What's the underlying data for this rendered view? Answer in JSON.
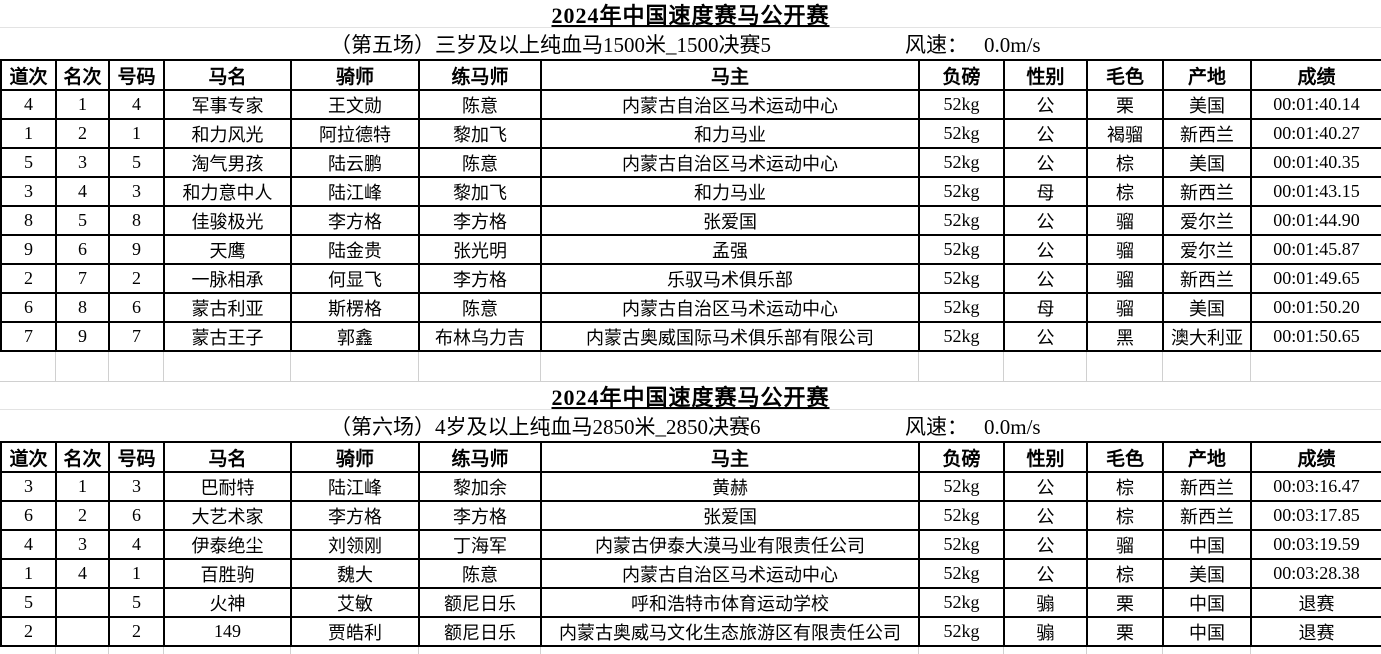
{
  "colors": {
    "background": "#ffffff",
    "text": "#000000",
    "table_border": "#000000",
    "faint_gridline": "#d0d0d0"
  },
  "sections": [
    {
      "title": "2024年中国速度赛马公开赛",
      "subtitle": "（第五场）三岁及以上纯血马1500米_1500决赛5",
      "wind_label": "风速：",
      "wind_value": "0.0m/s",
      "columns": [
        "道次",
        "名次",
        "号码",
        "马名",
        "骑师",
        "练马师",
        "马主",
        "负磅",
        "性别",
        "毛色",
        "产地",
        "成绩"
      ],
      "rows": [
        [
          "4",
          "1",
          "4",
          "军事专家",
          "王文勋",
          "陈意",
          "内蒙古自治区马术运动中心",
          "52kg",
          "公",
          "栗",
          "美国",
          "00:01:40.14"
        ],
        [
          "1",
          "2",
          "1",
          "和力风光",
          "阿拉德特",
          "黎加飞",
          "和力马业",
          "52kg",
          "公",
          "褐骝",
          "新西兰",
          "00:01:40.27"
        ],
        [
          "5",
          "3",
          "5",
          "淘气男孩",
          "陆云鹏",
          "陈意",
          "内蒙古自治区马术运动中心",
          "52kg",
          "公",
          "棕",
          "美国",
          "00:01:40.35"
        ],
        [
          "3",
          "4",
          "3",
          "和力意中人",
          "陆江峰",
          "黎加飞",
          "和力马业",
          "52kg",
          "母",
          "棕",
          "新西兰",
          "00:01:43.15"
        ],
        [
          "8",
          "5",
          "8",
          "佳骏极光",
          "李方格",
          "李方格",
          "张爱国",
          "52kg",
          "公",
          "骝",
          "爱尔兰",
          "00:01:44.90"
        ],
        [
          "9",
          "6",
          "9",
          "天鹰",
          "陆金贵",
          "张光明",
          "孟强",
          "52kg",
          "公",
          "骝",
          "爱尔兰",
          "00:01:45.87"
        ],
        [
          "2",
          "7",
          "2",
          "一脉相承",
          "何显飞",
          "李方格",
          "乐驭马术俱乐部",
          "52kg",
          "公",
          "骝",
          "新西兰",
          "00:01:49.65"
        ],
        [
          "6",
          "8",
          "6",
          "蒙古利亚",
          "斯楞格",
          "陈意",
          "内蒙古自治区马术运动中心",
          "52kg",
          "母",
          "骝",
          "美国",
          "00:01:50.20"
        ],
        [
          "7",
          "9",
          "7",
          "蒙古王子",
          "郭鑫",
          "布林乌力吉",
          "内蒙古奥威国际马术俱乐部有限公司",
          "52kg",
          "公",
          "黑",
          "澳大利亚",
          "00:01:50.65"
        ]
      ]
    },
    {
      "title": "2024年中国速度赛马公开赛",
      "subtitle": "（第六场）4岁及以上纯血马2850米_2850决赛6",
      "wind_label": "风速：",
      "wind_value": "0.0m/s",
      "columns": [
        "道次",
        "名次",
        "号码",
        "马名",
        "骑师",
        "练马师",
        "马主",
        "负磅",
        "性别",
        "毛色",
        "产地",
        "成绩"
      ],
      "rows": [
        [
          "3",
          "1",
          "3",
          "巴耐特",
          "陆江峰",
          "黎加余",
          "黄赫",
          "52kg",
          "公",
          "棕",
          "新西兰",
          "00:03:16.47"
        ],
        [
          "6",
          "2",
          "6",
          "大艺术家",
          "李方格",
          "李方格",
          "张爱国",
          "52kg",
          "公",
          "棕",
          "新西兰",
          "00:03:17.85"
        ],
        [
          "4",
          "3",
          "4",
          "伊泰绝尘",
          "刘领刚",
          "丁海军",
          "内蒙古伊泰大漠马业有限责任公司",
          "52kg",
          "公",
          "骝",
          "中国",
          "00:03:19.59"
        ],
        [
          "1",
          "4",
          "1",
          "百胜驹",
          "魏大",
          "陈意",
          "内蒙古自治区马术运动中心",
          "52kg",
          "公",
          "棕",
          "美国",
          "00:03:28.38"
        ],
        [
          "5",
          "",
          "5",
          "火神",
          "艾敏",
          "额尼日乐",
          "呼和浩特市体育运动学校",
          "52kg",
          "骟",
          "栗",
          "中国",
          "退赛"
        ],
        [
          "2",
          "",
          "2",
          "149",
          "贾皓利",
          "额尼日乐",
          "内蒙古奥威马文化生态旅游区有限责任公司",
          "52kg",
          "骟",
          "栗",
          "中国",
          "退赛"
        ]
      ]
    }
  ]
}
